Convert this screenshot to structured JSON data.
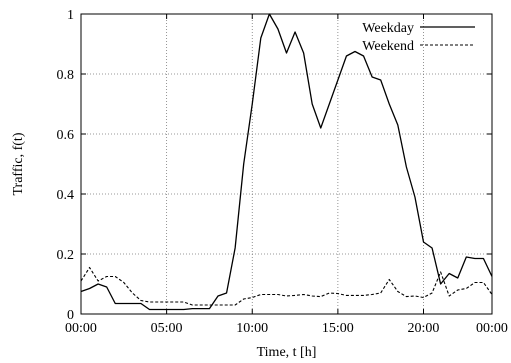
{
  "chart_data": {
    "type": "line",
    "title": "",
    "xlabel": "Time, t [h]",
    "ylabel": "Traffic, f(t)",
    "xlim": [
      0,
      24
    ],
    "ylim": [
      0,
      1
    ],
    "x_ticks": [
      {
        "value": 0,
        "label": "00:00"
      },
      {
        "value": 5,
        "label": "05:00"
      },
      {
        "value": 10,
        "label": "10:00"
      },
      {
        "value": 15,
        "label": "15:00"
      },
      {
        "value": 20,
        "label": "20:00"
      },
      {
        "value": 24,
        "label": "00:00"
      }
    ],
    "y_ticks": [
      {
        "value": 0,
        "label": "0"
      },
      {
        "value": 0.2,
        "label": "0.2"
      },
      {
        "value": 0.4,
        "label": "0.4"
      },
      {
        "value": 0.6,
        "label": "0.6"
      },
      {
        "value": 0.8,
        "label": "0.8"
      },
      {
        "value": 1,
        "label": "1"
      }
    ],
    "grid": true,
    "legend_position": "top-right",
    "series": [
      {
        "name": "Weekday",
        "style": "solid",
        "color": "#000000",
        "x": [
          0,
          0.5,
          1,
          1.5,
          2,
          2.5,
          3,
          3.5,
          4,
          4.5,
          5,
          5.5,
          6,
          6.5,
          7,
          7.5,
          8,
          8.5,
          9,
          9.5,
          10,
          10.5,
          11,
          11.5,
          12,
          12.5,
          13,
          13.5,
          14,
          14.5,
          15,
          15.5,
          16,
          16.5,
          17,
          17.5,
          18,
          18.5,
          19,
          19.5,
          20,
          20.5,
          21,
          21.5,
          22,
          22.5,
          23,
          23.5,
          24
        ],
        "y": [
          0.075,
          0.085,
          0.1,
          0.09,
          0.035,
          0.035,
          0.035,
          0.035,
          0.015,
          0.015,
          0.015,
          0.015,
          0.015,
          0.018,
          0.018,
          0.018,
          0.06,
          0.07,
          0.22,
          0.5,
          0.7,
          0.92,
          1.0,
          0.95,
          0.87,
          0.94,
          0.87,
          0.7,
          0.62,
          0.7,
          0.78,
          0.86,
          0.875,
          0.86,
          0.79,
          0.78,
          0.7,
          0.63,
          0.49,
          0.39,
          0.24,
          0.22,
          0.1,
          0.135,
          0.12,
          0.19,
          0.185,
          0.185,
          0.125
        ]
      },
      {
        "name": "Weekend",
        "style": "dashed",
        "color": "#000000",
        "x": [
          0,
          0.5,
          1,
          1.5,
          2,
          2.5,
          3,
          3.5,
          4,
          4.5,
          5,
          5.5,
          6,
          6.5,
          7,
          7.5,
          8,
          8.5,
          9,
          9.5,
          10,
          10.5,
          11,
          11.5,
          12,
          12.5,
          13,
          13.5,
          14,
          14.5,
          15,
          15.5,
          16,
          16.5,
          17,
          17.5,
          18,
          18.5,
          19,
          19.5,
          20,
          20.5,
          21,
          21.5,
          22,
          22.5,
          23,
          23.5,
          24
        ],
        "y": [
          0.11,
          0.155,
          0.11,
          0.125,
          0.125,
          0.105,
          0.07,
          0.045,
          0.04,
          0.04,
          0.04,
          0.04,
          0.04,
          0.03,
          0.03,
          0.03,
          0.03,
          0.03,
          0.03,
          0.05,
          0.055,
          0.065,
          0.065,
          0.065,
          0.06,
          0.062,
          0.065,
          0.06,
          0.058,
          0.07,
          0.068,
          0.062,
          0.062,
          0.062,
          0.065,
          0.07,
          0.115,
          0.075,
          0.058,
          0.06,
          0.055,
          0.07,
          0.14,
          0.06,
          0.08,
          0.085,
          0.105,
          0.105,
          0.065
        ]
      }
    ]
  }
}
